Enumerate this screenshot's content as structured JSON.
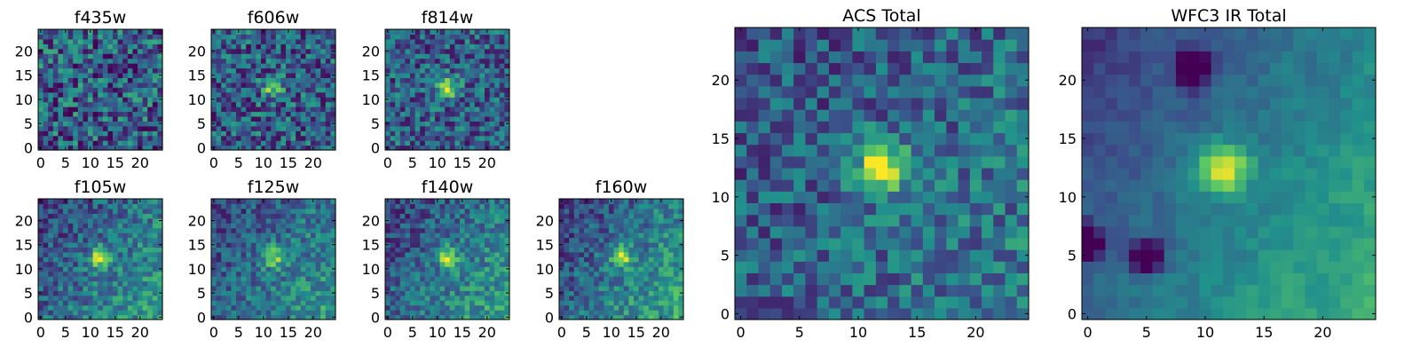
{
  "chart_data": [
    {
      "type": "heatmap",
      "title": "f435w",
      "xlim": [
        0,
        24
      ],
      "ylim": [
        0,
        24
      ],
      "xticks": [
        0,
        5,
        10,
        15,
        20
      ],
      "yticks": [
        0,
        5,
        10,
        15,
        20
      ],
      "grid": false,
      "source_peak": [
        12,
        12
      ],
      "source_strength": 0.0,
      "noise": 0.62,
      "seed": 11
    },
    {
      "type": "heatmap",
      "title": "f606w",
      "xlim": [
        0,
        24
      ],
      "ylim": [
        0,
        24
      ],
      "xticks": [
        0,
        5,
        10,
        15,
        20
      ],
      "yticks": [
        0,
        5,
        10,
        15,
        20
      ],
      "grid": false,
      "source_peak": [
        12,
        12.5
      ],
      "source_strength": 0.45,
      "noise": 0.55,
      "seed": 23
    },
    {
      "type": "heatmap",
      "title": "f814w",
      "xlim": [
        0,
        24
      ],
      "ylim": [
        0,
        24
      ],
      "xticks": [
        0,
        5,
        10,
        15,
        20
      ],
      "yticks": [
        0,
        5,
        10,
        15,
        20
      ],
      "grid": false,
      "source_peak": [
        12,
        12.5
      ],
      "source_strength": 0.6,
      "noise": 0.5,
      "seed": 37
    },
    {
      "type": "heatmap",
      "title": "f105w",
      "xlim": [
        0,
        24
      ],
      "ylim": [
        0,
        24
      ],
      "xticks": [
        0,
        5,
        10,
        15,
        20
      ],
      "yticks": [
        0,
        5,
        10,
        15,
        20
      ],
      "grid": false,
      "source_peak": [
        12,
        12.5
      ],
      "source_strength": 0.55,
      "noise": 0.4,
      "seed": 41,
      "gradient": 0.35
    },
    {
      "type": "heatmap",
      "title": "f125w",
      "xlim": [
        0,
        24
      ],
      "ylim": [
        0,
        24
      ],
      "xticks": [
        0,
        5,
        10,
        15,
        20
      ],
      "yticks": [
        0,
        5,
        10,
        15,
        20
      ],
      "grid": false,
      "source_peak": [
        12,
        12.5
      ],
      "source_strength": 0.45,
      "noise": 0.38,
      "seed": 53,
      "gradient": 0.35
    },
    {
      "type": "heatmap",
      "title": "f140w",
      "xlim": [
        0,
        24
      ],
      "ylim": [
        0,
        24
      ],
      "xticks": [
        0,
        5,
        10,
        15,
        20
      ],
      "yticks": [
        0,
        5,
        10,
        15,
        20
      ],
      "grid": false,
      "source_peak": [
        12,
        12.5
      ],
      "source_strength": 0.5,
      "noise": 0.38,
      "seed": 67,
      "gradient": 0.4
    },
    {
      "type": "heatmap",
      "title": "f160w",
      "xlim": [
        0,
        24
      ],
      "ylim": [
        0,
        24
      ],
      "xticks": [
        0,
        5,
        10,
        15,
        20
      ],
      "yticks": [
        0,
        5,
        10,
        15,
        20
      ],
      "grid": false,
      "source_peak": [
        12,
        12.5
      ],
      "source_strength": 0.5,
      "noise": 0.38,
      "seed": 79,
      "gradient": 0.45
    },
    {
      "type": "heatmap",
      "title": "ACS Total",
      "xlim": [
        0,
        24
      ],
      "ylim": [
        0,
        24
      ],
      "xticks": [
        0,
        5,
        10,
        15,
        20
      ],
      "yticks": [
        0,
        5,
        10,
        15,
        20
      ],
      "grid": false,
      "source_peak": [
        12,
        12.5
      ],
      "source_strength": 0.7,
      "noise": 0.42,
      "seed": 97,
      "gradient": 0.15
    },
    {
      "type": "heatmap",
      "title": "WFC3 IR Total",
      "xlim": [
        0,
        24
      ],
      "ylim": [
        0,
        24
      ],
      "xticks": [
        0,
        5,
        10,
        15,
        20
      ],
      "yticks": [
        0,
        5,
        10,
        15,
        20
      ],
      "grid": false,
      "source_peak": [
        11.5,
        12.5
      ],
      "source_strength": 0.6,
      "noise": 0.22,
      "seed": 131,
      "gradient": 0.5,
      "dark_spots": [
        [
          9,
          21
        ],
        [
          5,
          5
        ],
        [
          0,
          6
        ]
      ]
    }
  ],
  "colormap": {
    "name": "viridis",
    "stops": [
      "#440154",
      "#3b528b",
      "#21918c",
      "#5ec962",
      "#fde725"
    ]
  }
}
